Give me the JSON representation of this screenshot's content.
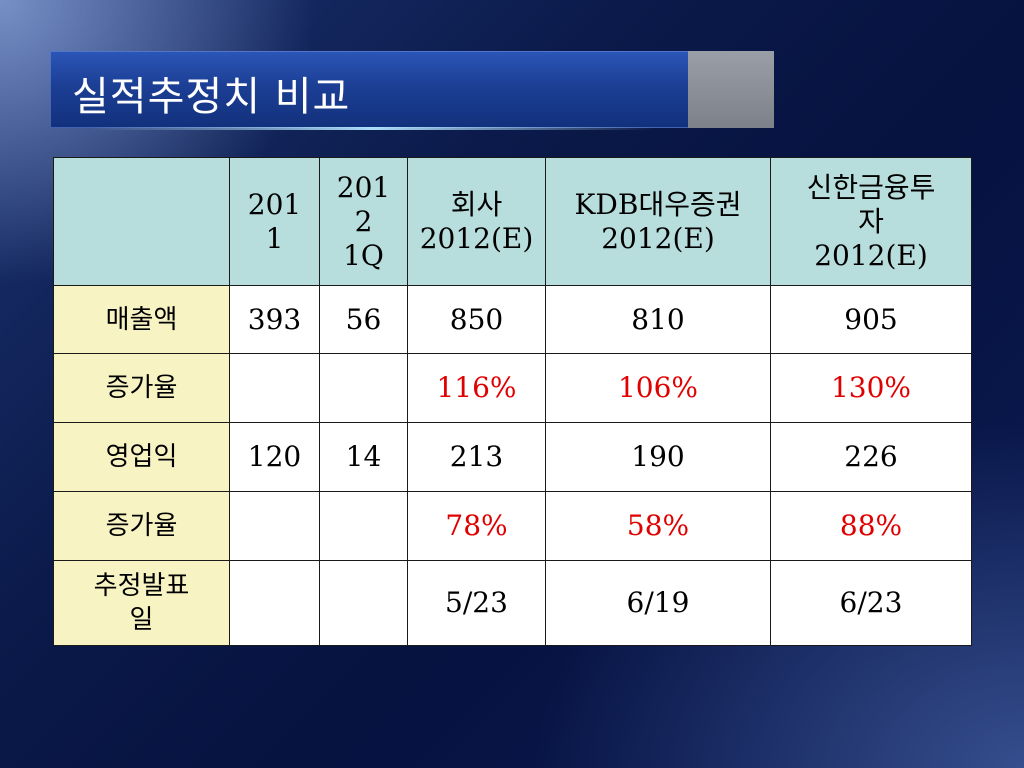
{
  "slide": {
    "title": "실적추정치 비교",
    "accent_color": "#e00000"
  },
  "table": {
    "headers": [
      {
        "lines": [
          ""
        ]
      },
      {
        "lines": [
          "201",
          "1"
        ]
      },
      {
        "lines": [
          "201",
          "2",
          "1Q"
        ]
      },
      {
        "lines": [
          "회사",
          "2012(E)"
        ]
      },
      {
        "lines": [
          "KDB대우증권",
          "2012(E)"
        ]
      },
      {
        "lines": [
          "신한금융투",
          "자",
          "2012(E)"
        ]
      }
    ],
    "rows": [
      {
        "label": "매출액",
        "cells": [
          "393",
          "56",
          "850",
          "810",
          "905"
        ],
        "highlight": false
      },
      {
        "label": "증가율",
        "cells": [
          "",
          "",
          "116%",
          "106%",
          "130%"
        ],
        "highlight": true
      },
      {
        "label": "영업익",
        "cells": [
          "120",
          "14",
          "213",
          "190",
          "226"
        ],
        "highlight": false
      },
      {
        "label": "증가율",
        "cells": [
          "",
          "",
          "78%",
          "58%",
          "88%"
        ],
        "highlight": true
      },
      {
        "label": "추정발표일",
        "label_lines": [
          "추정발표",
          "일"
        ],
        "cells": [
          "",
          "",
          "5/23",
          "6/19",
          "6/23"
        ],
        "highlight": false
      }
    ]
  }
}
